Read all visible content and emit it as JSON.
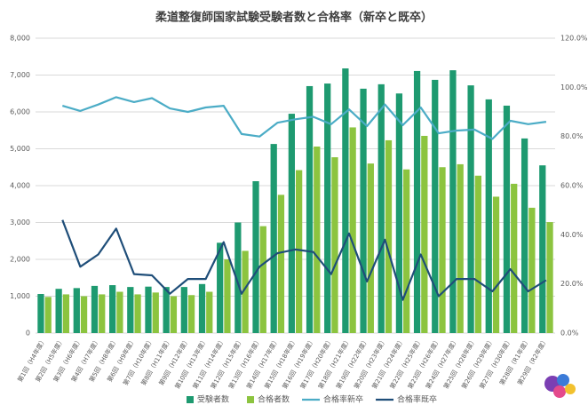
{
  "chart_data": {
    "type": "bar-line",
    "title": "柔道整復師国家試験受験者数と合格率（新卒と既卒）",
    "categories": [
      "第1回（H4年度）",
      "第2回（H5年度）",
      "第3回（H6年度）",
      "第4回（H7年度）",
      "第5回（H8年度）",
      "第6回（H9年度）",
      "第7回（H10年度）",
      "第8回（H11年度）",
      "第9回（H12年度）",
      "第10回（H13年度）",
      "第11回（H14年度）",
      "第12回（H15年度）",
      "第13回（H16年度）",
      "第14回（H17年度）",
      "第15回（H18年度）",
      "第16回（H19年度）",
      "第17回（H20年度）",
      "第18回（H21年度）",
      "第19回（H22年度）",
      "第20回（H23年度）",
      "第21回（H24年度）",
      "第22回（H25年度）",
      "第23回（H26年度）",
      "第24回（H27年度）",
      "第25回（H28年度）",
      "第26回（H29年度）",
      "第27回（H30年度）",
      "第28回（R1年度）",
      "第29回（R2年度）"
    ],
    "series": [
      {
        "name": "受験者数",
        "kind": "bar",
        "color": "#1e9a70",
        "values": [
          1060,
          1200,
          1220,
          1280,
          1300,
          1250,
          1260,
          1250,
          1250,
          1330,
          2450,
          3000,
          4120,
          5130,
          5950,
          6700,
          6770,
          7180,
          6630,
          6750,
          6500,
          7110,
          6870,
          7130,
          6720,
          6340,
          6170,
          5280,
          4550
        ]
      },
      {
        "name": "合格者数",
        "kind": "bar",
        "color": "#8cc43f",
        "values": [
          980,
          1050,
          1000,
          1050,
          1120,
          1050,
          1100,
          1000,
          1030,
          1120,
          2000,
          2230,
          2900,
          3750,
          4420,
          5060,
          4770,
          5580,
          4600,
          5230,
          4440,
          5350,
          4500,
          4580,
          4270,
          3700,
          4050,
          3400,
          3010
        ]
      },
      {
        "name": "合格率新卒",
        "kind": "line",
        "axis": "y2",
        "color": "#4bacc6",
        "values": [
          null,
          92.5,
          90.4,
          93,
          96,
          94,
          95.6,
          91.4,
          90,
          91.8,
          92.5,
          81,
          80,
          85.6,
          87,
          88,
          85,
          91,
          84.2,
          93,
          84.6,
          91.8,
          81.3,
          82.4,
          82.8,
          79,
          86.4,
          85,
          86
        ]
      },
      {
        "name": "合格率既卒",
        "kind": "line",
        "axis": "y2",
        "color": "#1f4e79",
        "values": [
          null,
          46,
          27,
          32,
          42.5,
          24,
          23.5,
          16,
          22,
          22,
          37,
          16,
          27,
          32.5,
          34,
          33,
          24,
          40.5,
          21,
          38,
          13.5,
          32,
          15,
          22,
          22,
          17,
          26,
          17,
          21.5
        ]
      }
    ],
    "ylim": [
      0,
      8000
    ],
    "yticks": [
      0,
      {
        "value": 1000,
        "label": "1,000"
      },
      {
        "value": 2000,
        "label": "2,000"
      },
      {
        "value": 3000,
        "label": "3,000"
      },
      {
        "value": 4000,
        "label": "4,000"
      },
      {
        "value": 5000,
        "label": "5,000"
      },
      {
        "value": 6000,
        "label": "6,000"
      },
      {
        "value": 7000,
        "label": "7,000"
      },
      {
        "value": 8000,
        "label": "8,000"
      }
    ],
    "y2lim": [
      0,
      120
    ],
    "y2ticks": [
      {
        "value": 0,
        "label": "0.0%"
      },
      {
        "value": 20,
        "label": "20.0%"
      },
      {
        "value": 40,
        "label": "40.0%"
      },
      {
        "value": 60,
        "label": "60.0%"
      },
      {
        "value": 80,
        "label": "80.0%"
      },
      {
        "value": 100,
        "label": "100.0%"
      },
      {
        "value": 120,
        "label": "120.0%"
      }
    ],
    "grid": true,
    "legend": "bottom"
  }
}
